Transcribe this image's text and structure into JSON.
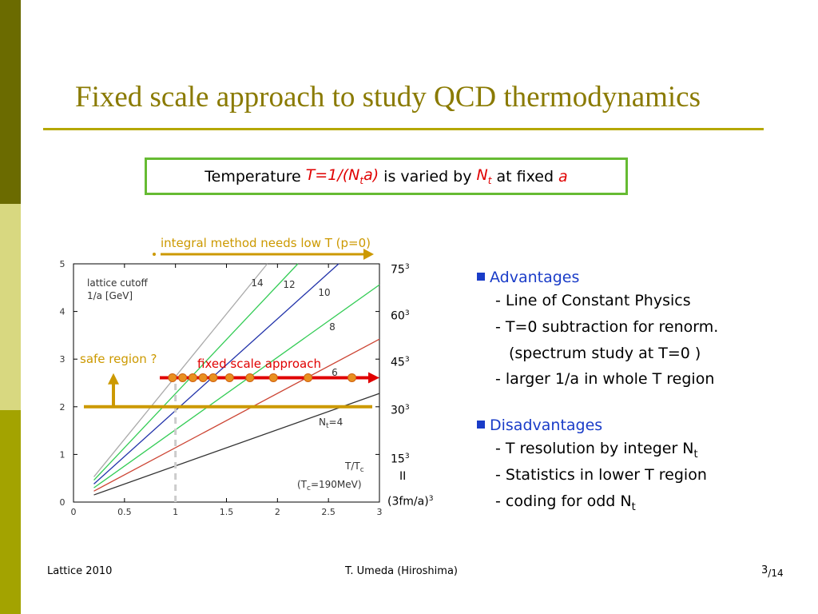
{
  "colors": {
    "bar_dark": "#6b6b00",
    "bar_light": "#d8d880",
    "bar_mid": "#a3a300",
    "title": "#8a7a00",
    "rule": "#b5a800",
    "box_border": "#66bb33",
    "accent_red": "#e00000",
    "bullet_blue": "#1a3cc8",
    "arrow_gold": "#cc9900"
  },
  "slide": {
    "title": "Fixed scale approach to study QCD thermodynamics"
  },
  "box": {
    "prefix": "Temperature ",
    "formula_pre": "T=1/(N",
    "formula_sub": "t",
    "formula_post": "a)",
    "mid": " is varied by ",
    "nt": "N",
    "nt_sub": "t",
    "after": " at fixed ",
    "a": "a"
  },
  "annotations": {
    "integral": "integral method needs low T (p=0)",
    "safe": "safe region ?",
    "fixed": "fixed scale approach"
  },
  "volumes": {
    "v75": "75",
    "v60": "60",
    "v45": "45",
    "v30": "30",
    "v15": "15",
    "exp": "3",
    "eq": "II",
    "unit_pre": "(3fm/a)",
    "unit_exp": "3"
  },
  "advantages": {
    "heading": "Advantages",
    "items": [
      "- Line of Constant Physics",
      "- T=0 subtraction for renorm.",
      "(spectrum study at T=0 )",
      "- larger 1/a in whole T region"
    ]
  },
  "disadvantages": {
    "heading": "Disadvantages",
    "item1_pre": "- T resolution by integer N",
    "item1_sub": "t",
    "item2": "- Statistics in lower T region",
    "item3_pre": "- coding for odd N",
    "item3_sub": "t"
  },
  "footer": {
    "left": "Lattice 2010",
    "center": "T. Umeda (Hiroshima)",
    "page": "3",
    "total": "/14"
  },
  "chart_data": {
    "type": "line",
    "xlim": [
      0,
      3
    ],
    "ylim": [
      0,
      5
    ],
    "xticks": [
      "0",
      "0.5",
      "1",
      "1.5",
      "2",
      "2.5",
      "3"
    ],
    "yticks": [
      "0",
      "1",
      "2",
      "3",
      "4",
      "5"
    ],
    "label_cutoff_1": "lattice cutoff",
    "label_cutoff_2": "1/a [GeV]",
    "xlabel_main": "T/T",
    "xlabel_main_sub": "c",
    "xlabel_tc_pre": "(T",
    "xlabel_tc_sub": "c",
    "xlabel_tc_post": "=190MeV)",
    "nt4_pre": "N",
    "nt4_sub": "t",
    "nt4_post": "=4",
    "series": [
      {
        "name": "4",
        "color": "#333333",
        "points": [
          [
            0.2,
            0.15
          ],
          [
            3,
            2.28
          ]
        ]
      },
      {
        "name": "6",
        "color": "#cc4433",
        "points": [
          [
            0.2,
            0.23
          ],
          [
            3,
            3.42
          ]
        ]
      },
      {
        "name": "8",
        "color": "#33cc55",
        "points": [
          [
            0.2,
            0.3
          ],
          [
            3,
            4.56
          ]
        ]
      },
      {
        "name": "10",
        "color": "#2233aa",
        "points": [
          [
            0.2,
            0.38
          ],
          [
            2.6,
            5
          ]
        ]
      },
      {
        "name": "12",
        "color": "#33cc55",
        "points": [
          [
            0.2,
            0.46
          ],
          [
            2.2,
            5
          ]
        ]
      },
      {
        "name": "14",
        "color": "#aaaaaa",
        "points": [
          [
            0.2,
            0.53
          ],
          [
            1.9,
            5
          ]
        ]
      }
    ],
    "fixed_scale_points": [
      [
        0.97,
        2.61
      ],
      [
        1.07,
        2.61
      ],
      [
        1.17,
        2.61
      ],
      [
        1.27,
        2.61
      ],
      [
        1.37,
        2.61
      ],
      [
        1.53,
        2.61
      ],
      [
        1.73,
        2.61
      ],
      [
        1.96,
        2.61
      ],
      [
        2.3,
        2.61
      ],
      [
        2.73,
        2.61
      ]
    ],
    "safe_line_y": 2.0,
    "dashed_x": 1.0
  }
}
